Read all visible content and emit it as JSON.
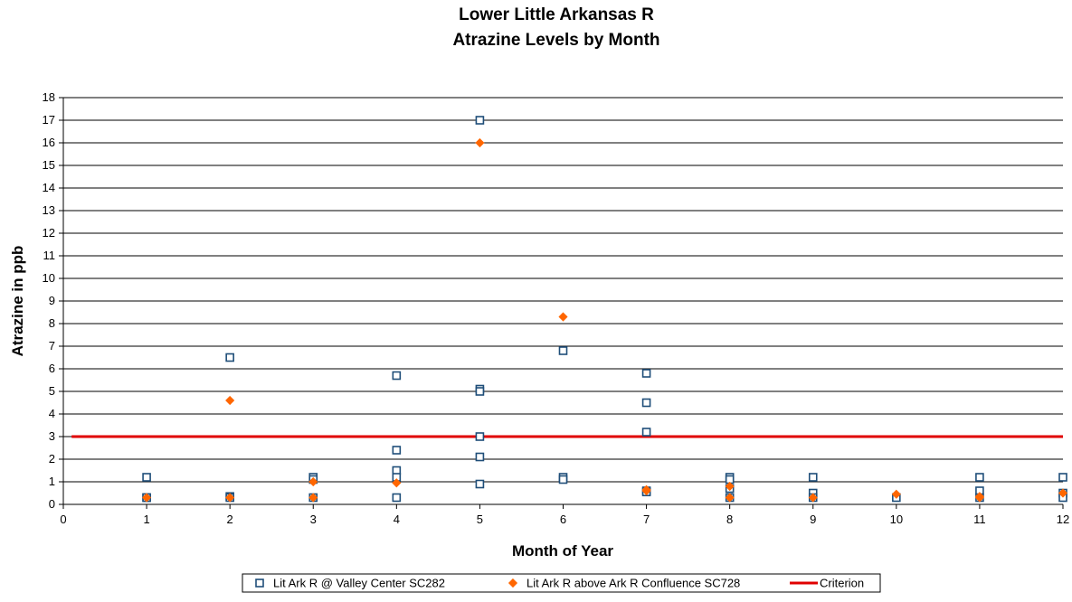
{
  "chart_data": {
    "type": "scatter",
    "title": "Lower Little Arkansas R",
    "subtitle": "Atrazine Levels by Month",
    "xlabel": "Month of Year",
    "ylabel": "Atrazine in ppb",
    "xlim": [
      0,
      12
    ],
    "ylim": [
      0,
      18
    ],
    "xticks": [
      "0",
      "1",
      "2",
      "3",
      "4",
      "5",
      "6",
      "7",
      "8",
      "9",
      "10",
      "11",
      "12"
    ],
    "yticks": [
      "0",
      "1",
      "2",
      "3",
      "4",
      "5",
      "6",
      "7",
      "8",
      "9",
      "10",
      "11",
      "12",
      "13",
      "14",
      "15",
      "16",
      "17",
      "18"
    ],
    "grid": "horizontal",
    "legend_position": "bottom",
    "series": [
      {
        "name": "Lit Ark R @ Valley Center SC282",
        "marker": "square-open",
        "color": "#1f4e79",
        "points": [
          [
            1,
            1.2
          ],
          [
            1,
            0.3
          ],
          [
            1,
            0.3
          ],
          [
            2,
            6.5
          ],
          [
            2,
            0.35
          ],
          [
            2,
            0.3
          ],
          [
            3,
            1.2
          ],
          [
            3,
            1.1
          ],
          [
            3,
            0.3
          ],
          [
            4,
            5.7
          ],
          [
            4,
            2.4
          ],
          [
            4,
            1.5
          ],
          [
            4,
            1.2
          ],
          [
            4,
            0.3
          ],
          [
            5,
            17
          ],
          [
            5,
            5.1
          ],
          [
            5,
            5.0
          ],
          [
            5,
            3.0
          ],
          [
            5,
            2.1
          ],
          [
            5,
            0.9
          ],
          [
            6,
            6.8
          ],
          [
            6,
            1.2
          ],
          [
            6,
            1.1
          ],
          [
            7,
            5.8
          ],
          [
            7,
            4.5
          ],
          [
            7,
            3.2
          ],
          [
            7,
            0.6
          ],
          [
            7,
            0.55
          ],
          [
            8,
            1.2
          ],
          [
            8,
            1.1
          ],
          [
            8,
            0.7
          ],
          [
            8,
            0.3
          ],
          [
            9,
            1.2
          ],
          [
            9,
            0.5
          ],
          [
            9,
            0.3
          ],
          [
            10,
            0.3
          ],
          [
            11,
            1.2
          ],
          [
            11,
            0.6
          ],
          [
            11,
            0.3
          ],
          [
            12,
            1.2
          ],
          [
            12,
            0.5
          ],
          [
            12,
            0.3
          ]
        ]
      },
      {
        "name": "Lit Ark R above Ark R Confluence SC728",
        "marker": "diamond",
        "color": "#ff6600",
        "points": [
          [
            1,
            0.3
          ],
          [
            2,
            4.6
          ],
          [
            2,
            0.3
          ],
          [
            3,
            1.0
          ],
          [
            3,
            0.3
          ],
          [
            4,
            0.95
          ],
          [
            5,
            16
          ],
          [
            6,
            8.3
          ],
          [
            7,
            0.65
          ],
          [
            7,
            0.6
          ],
          [
            8,
            0.8
          ],
          [
            8,
            0.3
          ],
          [
            9,
            0.3
          ],
          [
            10,
            0.45
          ],
          [
            11,
            0.35
          ],
          [
            11,
            0.3
          ],
          [
            12,
            0.5
          ]
        ]
      },
      {
        "name": "Criterion",
        "type": "line",
        "color": "#e00000",
        "points": [
          [
            0.1,
            3
          ],
          [
            12,
            3
          ]
        ]
      }
    ]
  }
}
